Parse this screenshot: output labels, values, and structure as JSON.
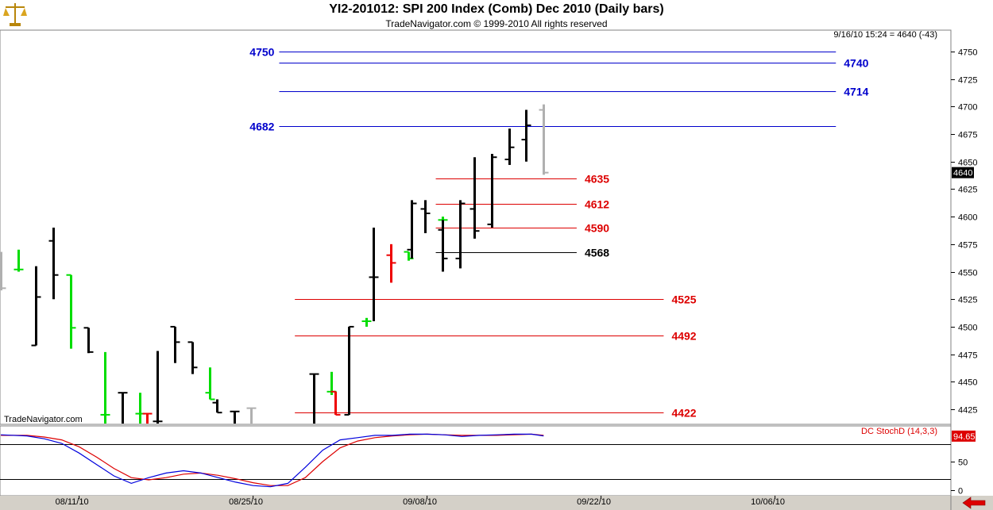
{
  "header": {
    "title": "YI2-201012:  SPI 200 Index (Comb) Dec 2010  (Daily bars)",
    "subtitle": "TradeNavigator.com © 1999-2010 All rights reserved",
    "quote_readout": "9/16/10 15:24 = 4640 (-43)",
    "watermark": "TradeNavigator.com",
    "logo_icon": "scale-logo-icon"
  },
  "chart_data": {
    "type": "ohlc",
    "ylim": [
      4412,
      4768
    ],
    "y_ticks": [
      4425,
      4450,
      4475,
      4500,
      4525,
      4550,
      4575,
      4600,
      4625,
      4650,
      4675,
      4700,
      4725,
      4750
    ],
    "x_ticks": [
      {
        "label": "08/11/10",
        "index": 4
      },
      {
        "label": "08/25/10",
        "index": 14
      },
      {
        "label": "09/08/10",
        "index": 24
      },
      {
        "label": "09/22/10",
        "index": 34
      },
      {
        "label": "10/06/10",
        "index": 44
      }
    ],
    "last_price": "4640",
    "bars": [
      {
        "i": -0.5,
        "o": 4567,
        "h": 4568,
        "l": 4533,
        "c": 4535,
        "color": "#b0b0b0"
      },
      {
        "i": 0.5,
        "o": 4552,
        "h": 4570,
        "l": 4550,
        "c": 4552,
        "color": "#00dd00"
      },
      {
        "i": 1.5,
        "o": 4483,
        "h": 4555,
        "l": 4483,
        "c": 4527,
        "color": "#000000"
      },
      {
        "i": 2.5,
        "o": 4578,
        "h": 4590,
        "l": 4525,
        "c": 4547,
        "color": "#000000"
      },
      {
        "i": 3.5,
        "o": 4547,
        "h": 4547,
        "l": 4480,
        "c": 4499,
        "color": "#00dd00"
      },
      {
        "i": 4.5,
        "o": 4499,
        "h": 4499,
        "l": 4476,
        "c": 4477,
        "color": "#000000"
      },
      {
        "i": 5.5,
        "o": 4420,
        "h": 4477,
        "l": 4412,
        "c": 4420,
        "color": "#00dd00"
      },
      {
        "i": 6.5,
        "o": 4440,
        "h": 4440,
        "l": 4412,
        "c": 4440,
        "color": "#000000"
      },
      {
        "i": 7.5,
        "o": 4421,
        "h": 4440,
        "l": 4412,
        "c": 4421,
        "color": "#00dd00"
      },
      {
        "i": 7.9,
        "o": 4421,
        "h": 4421,
        "l": 4412,
        "c": 4421,
        "color": "#ee0000"
      },
      {
        "i": 8.5,
        "o": 4414,
        "h": 4478,
        "l": 4412,
        "c": 4414,
        "color": "#000000"
      },
      {
        "i": 9.5,
        "o": 4500,
        "h": 4500,
        "l": 4467,
        "c": 4486,
        "color": "#000000"
      },
      {
        "i": 10.5,
        "o": 4486,
        "h": 4486,
        "l": 4457,
        "c": 4463,
        "color": "#000000"
      },
      {
        "i": 11.5,
        "o": 4440,
        "h": 4463,
        "l": 4434,
        "c": 4434,
        "color": "#00dd00"
      },
      {
        "i": 11.9,
        "o": 4431,
        "h": 4434,
        "l": 4422,
        "c": 4422,
        "color": "#000000"
      },
      {
        "i": 12.9,
        "o": 4423,
        "h": 4423,
        "l": 4412,
        "c": 4423,
        "color": "#000000"
      },
      {
        "i": 13.9,
        "o": 4426,
        "h": 4426,
        "l": 4412,
        "c": 4426,
        "color": "#b0b0b0"
      },
      {
        "i": 17.5,
        "o": 4457,
        "h": 4457,
        "l": 4412,
        "c": 4457,
        "color": "#000000"
      },
      {
        "i": 18.5,
        "o": 4441,
        "h": 4459,
        "l": 4438,
        "c": 4441,
        "color": "#00dd00"
      },
      {
        "i": 18.7,
        "o": 4441,
        "h": 4441,
        "l": 4420,
        "c": 4420,
        "color": "#ee0000"
      },
      {
        "i": 19.5,
        "o": 4420,
        "h": 4500,
        "l": 4420,
        "c": 4500,
        "color": "#000000"
      },
      {
        "i": 20.5,
        "o": 4505,
        "h": 4508,
        "l": 4500,
        "c": 4505,
        "color": "#00dd00"
      },
      {
        "i": 20.9,
        "o": 4545,
        "h": 4590,
        "l": 4505,
        "c": 4545,
        "color": "#000000"
      },
      {
        "i": 21.9,
        "o": 4565,
        "h": 4575,
        "l": 4540,
        "c": 4558,
        "color": "#ee0000"
      },
      {
        "i": 22.9,
        "o": 4568,
        "h": 4568,
        "l": 4560,
        "c": 4562,
        "color": "#00dd00"
      },
      {
        "i": 23.1,
        "o": 4570,
        "h": 4615,
        "l": 4562,
        "c": 4612,
        "color": "#000000"
      },
      {
        "i": 23.9,
        "o": 4607,
        "h": 4615,
        "l": 4585,
        "c": 4603,
        "color": "#000000"
      },
      {
        "i": 24.9,
        "o": 4597,
        "h": 4600,
        "l": 4585,
        "c": 4597,
        "color": "#00dd00"
      },
      {
        "i": 24.9,
        "o": 4588,
        "h": 4597,
        "l": 4550,
        "c": 4562,
        "color": "#000000"
      },
      {
        "i": 25.9,
        "o": 4562,
        "h": 4615,
        "l": 4553,
        "c": 4612,
        "color": "#000000"
      },
      {
        "i": 26.7,
        "o": 4607,
        "h": 4654,
        "l": 4580,
        "c": 4587,
        "color": "#000000"
      },
      {
        "i": 27.7,
        "o": 4593,
        "h": 4657,
        "l": 4590,
        "c": 4654,
        "color": "#000000"
      },
      {
        "i": 28.7,
        "o": 4652,
        "h": 4680,
        "l": 4647,
        "c": 4663,
        "color": "#000000"
      },
      {
        "i": 29.7,
        "o": 4670,
        "h": 4697,
        "l": 4650,
        "c": 4683,
        "color": "#000000"
      },
      {
        "i": 30.7,
        "o": 4697,
        "h": 4702,
        "l": 4638,
        "c": 4640,
        "color": "#b0b0b0"
      }
    ],
    "levels": [
      {
        "value": 4750,
        "label": "4750",
        "color": "#0000cc",
        "x0": 15.5,
        "x1": 47.5,
        "label_side": "left"
      },
      {
        "value": 4740,
        "label": "4740",
        "color": "#0000cc",
        "x0": 15.5,
        "x1": 47.5,
        "label_side": "right"
      },
      {
        "value": 4714,
        "label": "4714",
        "color": "#0000cc",
        "x0": 15.5,
        "x1": 47.5,
        "label_side": "right"
      },
      {
        "value": 4682,
        "label": "4682",
        "color": "#0000cc",
        "x0": 15.5,
        "x1": 47.5,
        "label_side": "left"
      },
      {
        "value": 4635,
        "label": "4635",
        "color": "#dd0000",
        "x0": 24.5,
        "x1": 32.6,
        "label_side": "right"
      },
      {
        "value": 4612,
        "label": "4612",
        "color": "#dd0000",
        "x0": 24.5,
        "x1": 32.6,
        "label_side": "right"
      },
      {
        "value": 4590,
        "label": "4590",
        "color": "#dd0000",
        "x0": 24.5,
        "x1": 32.6,
        "label_side": "right"
      },
      {
        "value": 4568,
        "label": "4568",
        "color": "#000000",
        "x0": 24.5,
        "x1": 32.6,
        "label_side": "right"
      },
      {
        "value": 4525,
        "label": "4525",
        "color": "#dd0000",
        "x0": 16.4,
        "x1": 37.6,
        "label_side": "right"
      },
      {
        "value": 4492,
        "label": "4492",
        "color": "#dd0000",
        "x0": 16.4,
        "x1": 37.6,
        "label_side": "right"
      },
      {
        "value": 4422,
        "label": "4422",
        "color": "#dd0000",
        "x0": 16.4,
        "x1": 37.6,
        "label_side": "right"
      }
    ],
    "indicator": {
      "name": "DC StochD (14,3,3)",
      "last_value": "94.65",
      "ylim": [
        0,
        100
      ],
      "y_ticks": [
        0,
        50
      ],
      "levels": [
        80,
        20
      ],
      "k_color": "#0000dd",
      "d_color": "#dd0000",
      "k": [
        [
          -0.5,
          97
        ],
        [
          1,
          95
        ],
        [
          2,
          90
        ],
        [
          3,
          82
        ],
        [
          4,
          65
        ],
        [
          5,
          45
        ],
        [
          6,
          25
        ],
        [
          7,
          12
        ],
        [
          8,
          22
        ],
        [
          9,
          30
        ],
        [
          10,
          34
        ],
        [
          11,
          30
        ],
        [
          12,
          22
        ],
        [
          13,
          14
        ],
        [
          14,
          8
        ],
        [
          15,
          6
        ],
        [
          16,
          12
        ],
        [
          17,
          40
        ],
        [
          18,
          70
        ],
        [
          19,
          88
        ],
        [
          20,
          92
        ],
        [
          21,
          96
        ],
        [
          22,
          96
        ],
        [
          23,
          98
        ],
        [
          24,
          98
        ],
        [
          25,
          97
        ],
        [
          26,
          94
        ],
        [
          27,
          96
        ],
        [
          28,
          97
        ],
        [
          29,
          98
        ],
        [
          30,
          98
        ],
        [
          30.7,
          95
        ]
      ],
      "d": [
        [
          -0.5,
          96
        ],
        [
          1,
          96
        ],
        [
          2,
          93
        ],
        [
          3,
          88
        ],
        [
          4,
          76
        ],
        [
          5,
          58
        ],
        [
          6,
          38
        ],
        [
          7,
          22
        ],
        [
          8,
          18
        ],
        [
          9,
          22
        ],
        [
          10,
          28
        ],
        [
          11,
          30
        ],
        [
          12,
          26
        ],
        [
          13,
          20
        ],
        [
          14,
          13
        ],
        [
          15,
          8
        ],
        [
          16,
          8
        ],
        [
          17,
          22
        ],
        [
          18,
          50
        ],
        [
          19,
          74
        ],
        [
          20,
          86
        ],
        [
          21,
          92
        ],
        [
          22,
          95
        ],
        [
          23,
          97
        ],
        [
          24,
          98
        ],
        [
          25,
          97
        ],
        [
          26,
          96
        ],
        [
          27,
          96
        ],
        [
          28,
          96
        ],
        [
          29,
          97
        ],
        [
          30,
          98
        ],
        [
          30.7,
          96
        ]
      ]
    }
  }
}
